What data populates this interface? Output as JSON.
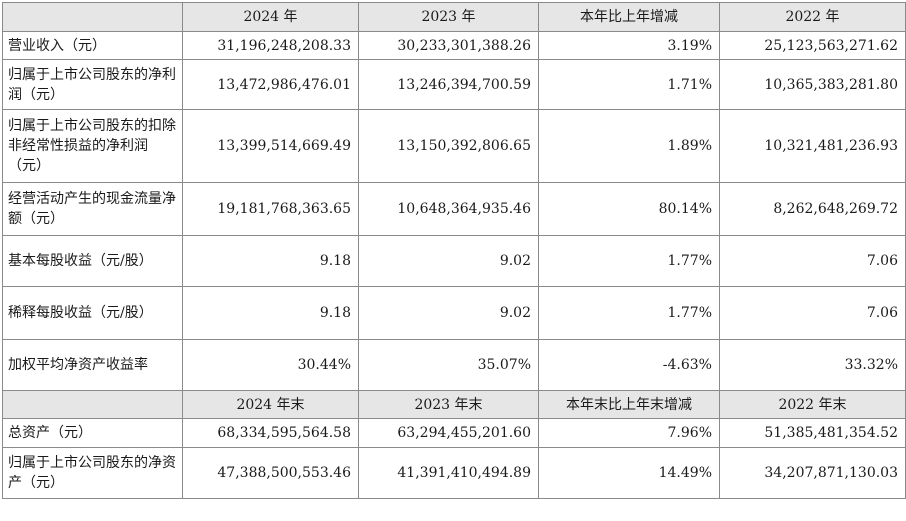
{
  "header1": {
    "blank": "",
    "c1": "2024 年",
    "c2": "2023 年",
    "c3": "本年比上年增减",
    "c4": "2022 年"
  },
  "rows1": [
    {
      "label": "营业收入（元）",
      "v2024": "31,196,248,208.33",
      "v2023": "30,233,301,388.26",
      "change": "3.19%",
      "v2022": "25,123,563,271.62"
    },
    {
      "label": "归属于上市公司股东的净利润（元）",
      "v2024": "13,472,986,476.01",
      "v2023": "13,246,394,700.59",
      "change": "1.71%",
      "v2022": "10,365,383,281.80"
    },
    {
      "label": "归属于上市公司股东的扣除非经常性损益的净利润（元）",
      "v2024": "13,399,514,669.49",
      "v2023": "13,150,392,806.65",
      "change": "1.89%",
      "v2022": "10,321,481,236.93"
    },
    {
      "label": "经营活动产生的现金流量净额（元）",
      "v2024": "19,181,768,363.65",
      "v2023": "10,648,364,935.46",
      "change": "80.14%",
      "v2022": "8,262,648,269.72"
    },
    {
      "label": "基本每股收益（元/股）",
      "v2024": "9.18",
      "v2023": "9.02",
      "change": "1.77%",
      "v2022": "7.06"
    },
    {
      "label": "稀释每股收益（元/股）",
      "v2024": "9.18",
      "v2023": "9.02",
      "change": "1.77%",
      "v2022": "7.06"
    },
    {
      "label": "加权平均净资产收益率",
      "v2024": "30.44%",
      "v2023": "35.07%",
      "change": "-4.63%",
      "v2022": "33.32%"
    }
  ],
  "header2": {
    "blank": "",
    "c1": "2024 年末",
    "c2": "2023 年末",
    "c3": "本年末比上年末增减",
    "c4": "2022 年末"
  },
  "rows2": [
    {
      "label": "总资产（元）",
      "v2024": "68,334,595,564.58",
      "v2023": "63,294,455,201.60",
      "change": "7.96%",
      "v2022": "51,385,481,354.52"
    },
    {
      "label": "归属于上市公司股东的净资产（元）",
      "v2024": "47,388,500,553.46",
      "v2023": "41,391,410,494.89",
      "change": "14.49%",
      "v2022": "34,207,871,130.03"
    }
  ]
}
